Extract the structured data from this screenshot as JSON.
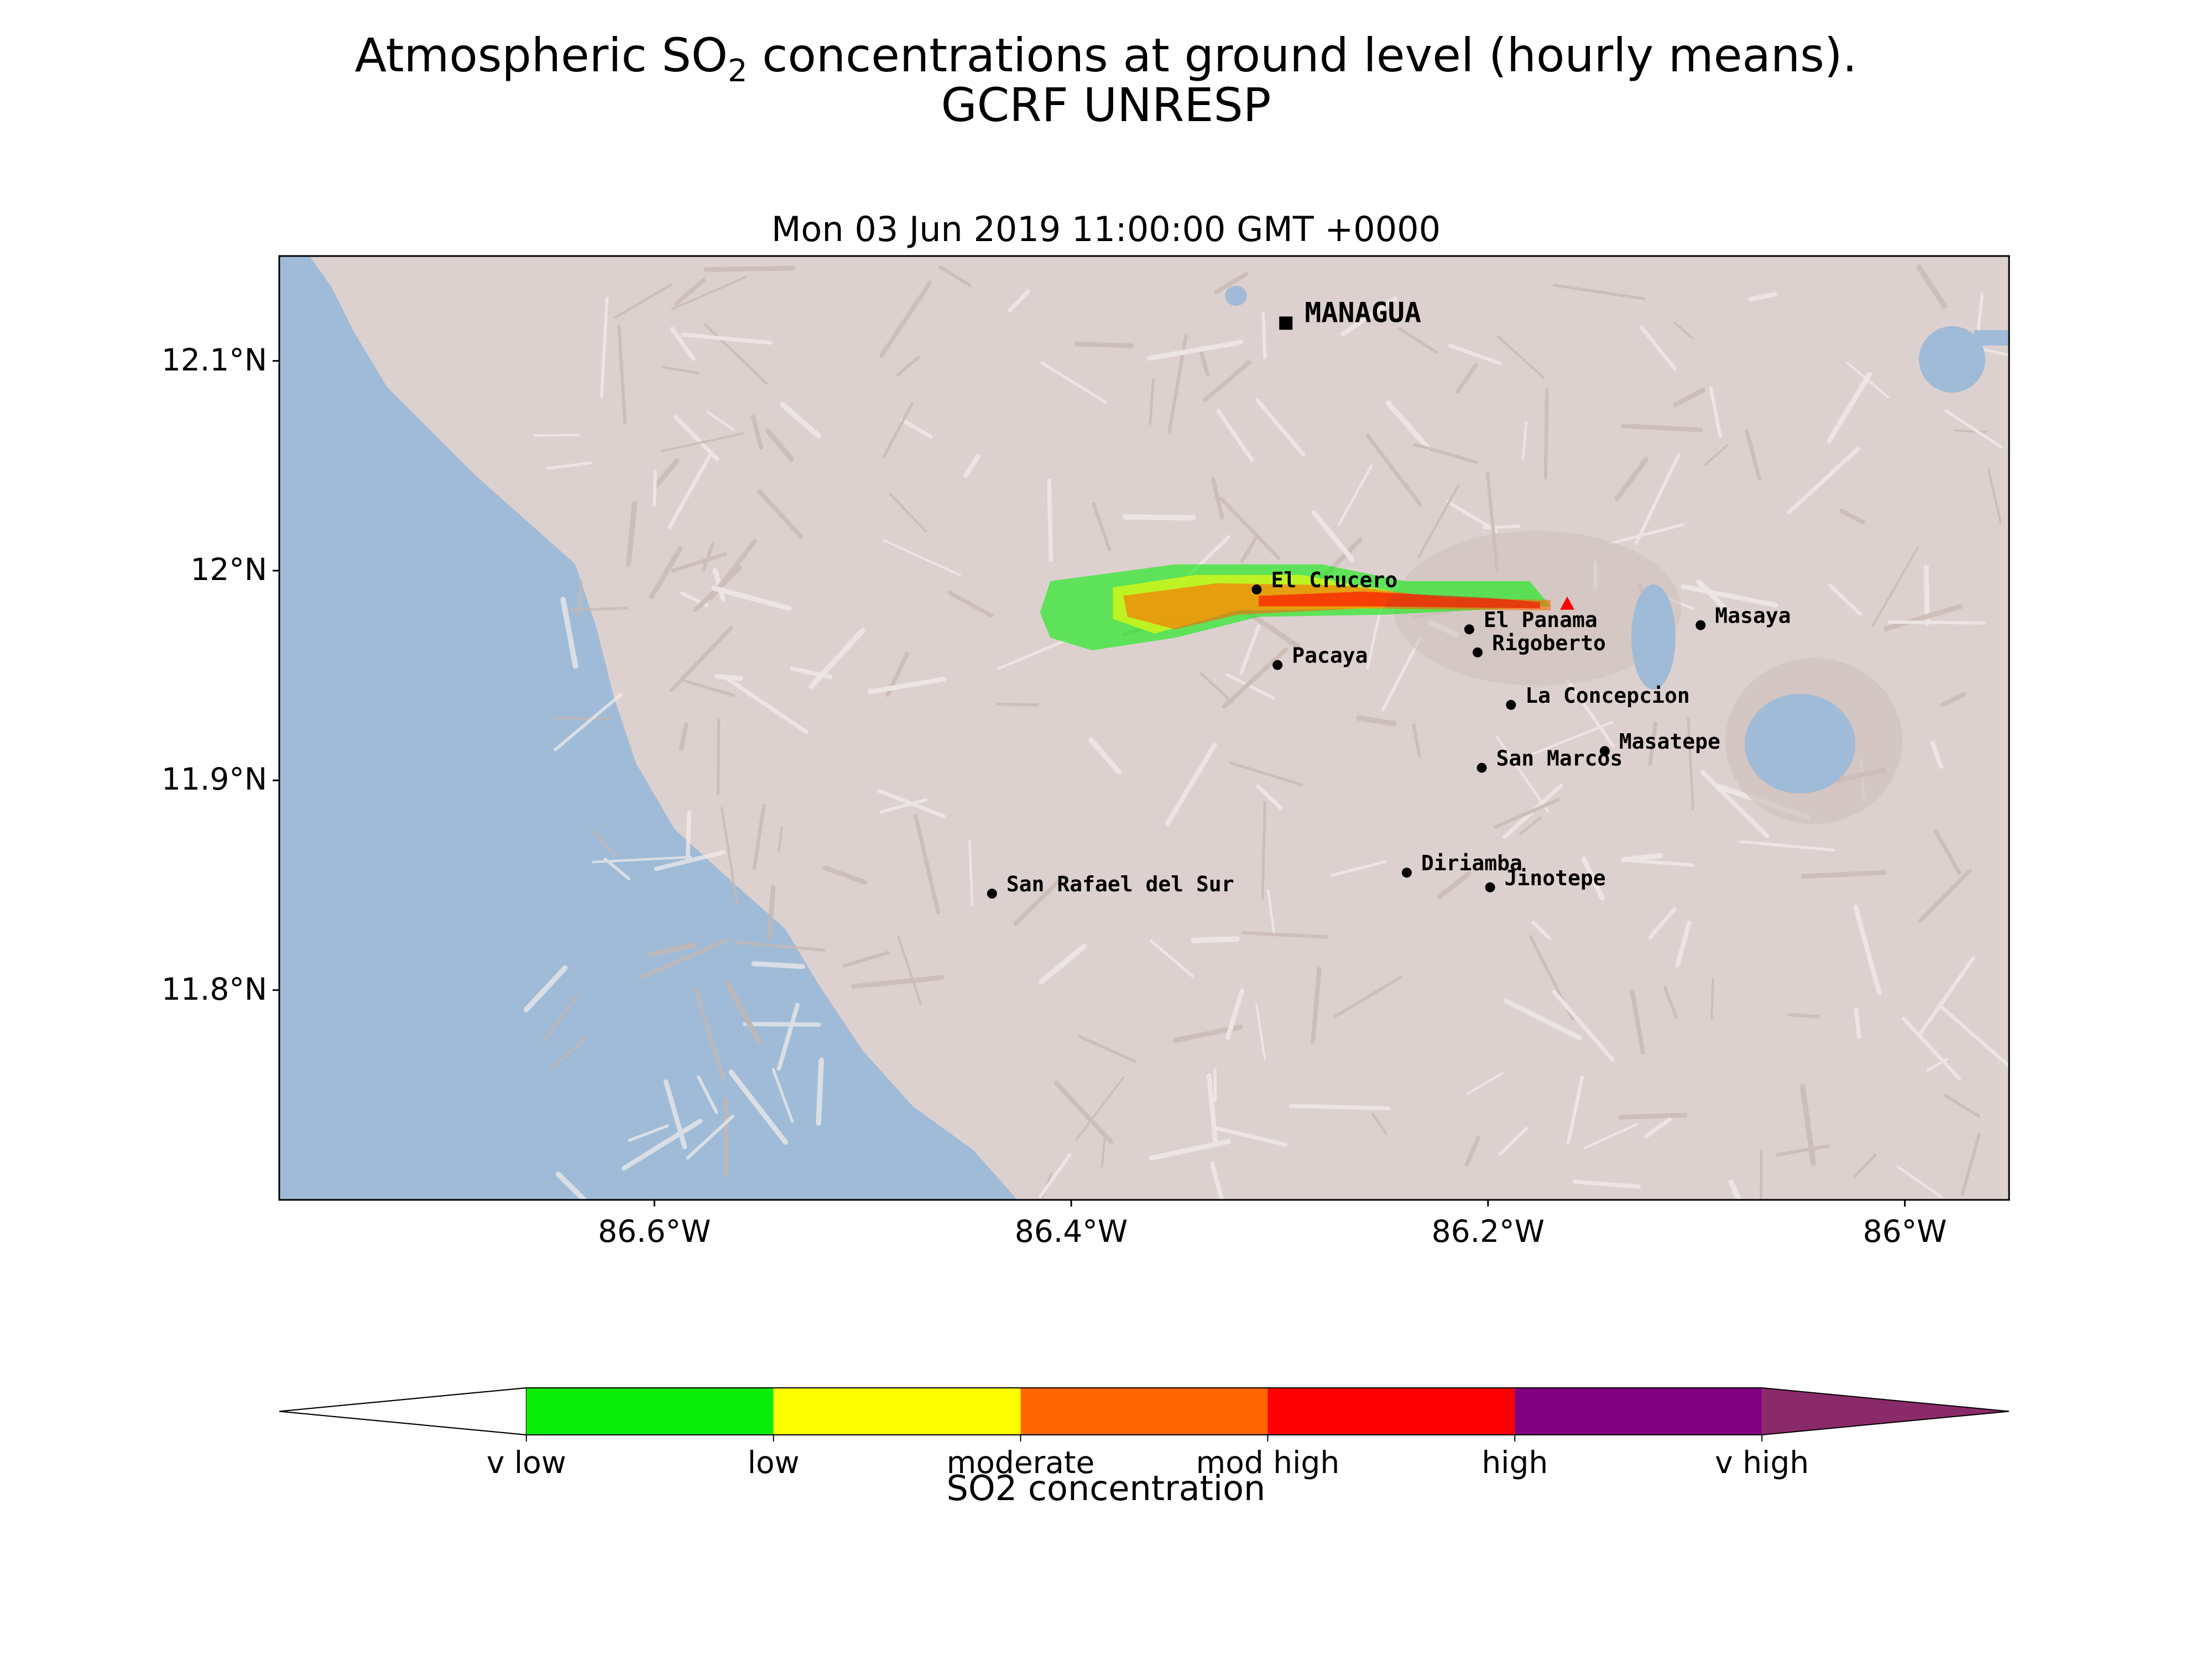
{
  "title": {
    "prefix": "Atmospheric SO",
    "sub": "2",
    "suffix": " concentrations at ground level (hourly means).",
    "line2": "GCRF UNRESP"
  },
  "subtitle": "Mon 03 Jun 2019 11:00:00 GMT +0000",
  "colors": {
    "sea": "#9fbbd7",
    "land": "#ddd1cf",
    "ridge": "#c8b7b2",
    "light": "#f3eeec",
    "marker": "#000000",
    "volcano": "#ff0000"
  },
  "map": {
    "lon_range": [
      -86.78,
      -85.95
    ],
    "lat_range": [
      11.7,
      12.15
    ],
    "lat_ticks": [
      {
        "v": 12.1,
        "label": "12.1°N"
      },
      {
        "v": 12.0,
        "label": "12°N"
      },
      {
        "v": 11.9,
        "label": "11.9°N"
      },
      {
        "v": 11.8,
        "label": "11.8°N"
      }
    ],
    "lon_ticks": [
      {
        "v": -86.6,
        "label": "86.6°W"
      },
      {
        "v": -86.4,
        "label": "86.4°W"
      },
      {
        "v": -86.2,
        "label": "86.2°W"
      },
      {
        "v": -86.0,
        "label": "86°W"
      }
    ],
    "capital": {
      "name": "MANAGUA",
      "lon": -86.297,
      "lat": 12.118
    },
    "volcano": {
      "name": "Masaya volcano",
      "lon": -86.162,
      "lat": 11.984
    },
    "towns": [
      {
        "name": "El Crucero",
        "lon": -86.311,
        "lat": 11.991
      },
      {
        "name": "El Panama",
        "lon": -86.209,
        "lat": 11.972
      },
      {
        "name": "Rigoberto",
        "lon": -86.205,
        "lat": 11.961
      },
      {
        "name": "Pacaya",
        "lon": -86.301,
        "lat": 11.955
      },
      {
        "name": "Masaya",
        "lon": -86.098,
        "lat": 11.974
      },
      {
        "name": "La Concepcion",
        "lon": -86.189,
        "lat": 11.936
      },
      {
        "name": "Masatepe",
        "lon": -86.144,
        "lat": 11.914
      },
      {
        "name": "San Marcos",
        "lon": -86.203,
        "lat": 11.906
      },
      {
        "name": "Diriamba",
        "lon": -86.239,
        "lat": 11.856
      },
      {
        "name": "Jinotepe",
        "lon": -86.199,
        "lat": 11.849
      },
      {
        "name": "San Rafael del Sur",
        "lon": -86.438,
        "lat": 11.846
      }
    ],
    "plume": [
      {
        "level": "v low",
        "color": "#0aec0a",
        "polygon": [
          [
            -86.41,
            11.995
          ],
          [
            -86.35,
            12.003
          ],
          [
            -86.28,
            12.003
          ],
          [
            -86.24,
            11.995
          ],
          [
            -86.18,
            11.995
          ],
          [
            -86.17,
            11.983
          ],
          [
            -86.25,
            11.979
          ],
          [
            -86.31,
            11.978
          ],
          [
            -86.35,
            11.968
          ],
          [
            -86.39,
            11.962
          ],
          [
            -86.41,
            11.968
          ],
          [
            -86.415,
            11.98
          ]
        ]
      },
      {
        "level": "low",
        "color": "#ffff00",
        "polygon": [
          [
            -86.38,
            11.992
          ],
          [
            -86.34,
            11.998
          ],
          [
            -86.29,
            11.998
          ],
          [
            -86.245,
            11.99
          ],
          [
            -86.25,
            11.982
          ],
          [
            -86.32,
            11.981
          ],
          [
            -86.36,
            11.97
          ],
          [
            -86.38,
            11.977
          ]
        ]
      },
      {
        "level": "moderate",
        "color": "#ff6600",
        "polygon": [
          [
            -86.375,
            11.988
          ],
          [
            -86.33,
            11.994
          ],
          [
            -86.27,
            11.993
          ],
          [
            -86.22,
            11.987
          ],
          [
            -86.17,
            11.986
          ],
          [
            -86.17,
            11.981
          ],
          [
            -86.26,
            11.982
          ],
          [
            -86.32,
            11.979
          ],
          [
            -86.35,
            11.972
          ],
          [
            -86.373,
            11.978
          ]
        ]
      },
      {
        "level": "mod high",
        "color": "#ff0000",
        "polygon": [
          [
            -86.31,
            11.988
          ],
          [
            -86.26,
            11.99
          ],
          [
            -86.2,
            11.987
          ],
          [
            -86.175,
            11.985
          ],
          [
            -86.175,
            11.982
          ],
          [
            -86.26,
            11.983
          ],
          [
            -86.31,
            11.983
          ]
        ]
      }
    ]
  },
  "colorbar": {
    "title": "SO2 concentration",
    "below_color": "#ffffff",
    "above_color": "#8b2a6a",
    "bins": [
      {
        "color": "#0aec0a"
      },
      {
        "color": "#ffff00"
      },
      {
        "color": "#ff6600"
      },
      {
        "color": "#ff0000"
      },
      {
        "color": "#800080"
      }
    ],
    "labels": [
      "v low",
      "low",
      "moderate",
      "mod high",
      "high",
      "v high"
    ]
  }
}
